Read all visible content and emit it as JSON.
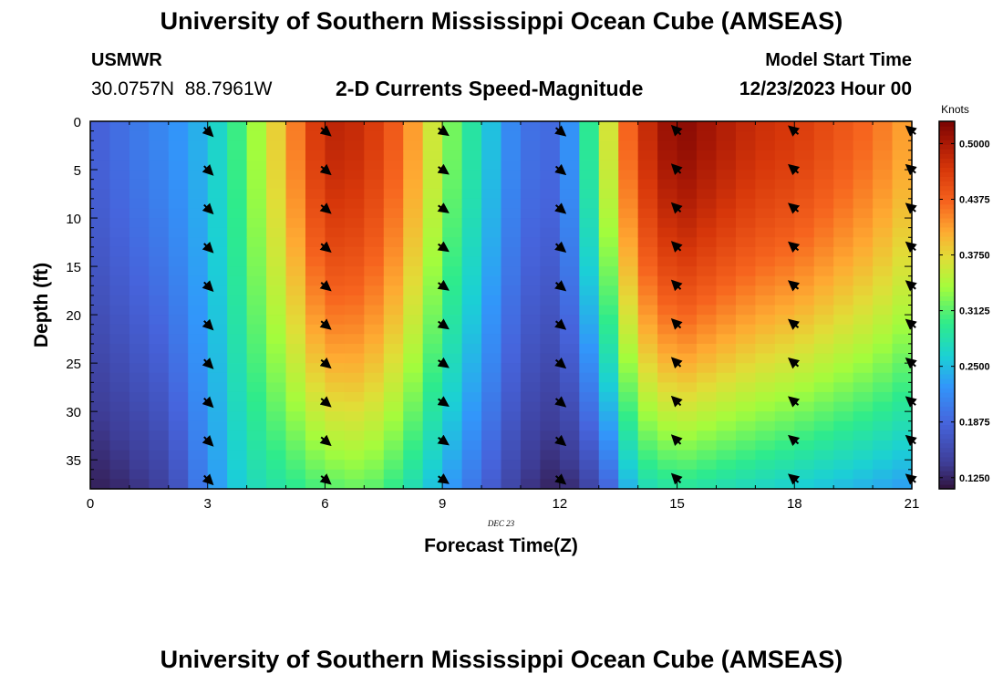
{
  "header": {
    "title": "University of Southern Mississippi Ocean Cube (AMSEAS)",
    "station": "USMWR",
    "coordinates": "30.0757N  88.7961W",
    "subtitle": "2-D Currents Speed-Magnitude",
    "model_start_label": "Model Start Time",
    "model_start_value": "12/23/2023 Hour 00"
  },
  "footer": {
    "title": "University of Southern Mississippi Ocean Cube (AMSEAS)"
  },
  "chart_data": {
    "type": "heatmap",
    "title": "2-D Currents Speed-Magnitude",
    "xlabel": "Forecast Time(Z)",
    "ylabel": "Depth (ft)",
    "date_label": "DEC 23",
    "xlim": [
      0,
      21
    ],
    "ylim": [
      0,
      38
    ],
    "x_ticks": [
      0,
      3,
      6,
      9,
      12,
      15,
      18,
      21
    ],
    "y_ticks": [
      0,
      5,
      10,
      15,
      20,
      25,
      30,
      35
    ],
    "colorbar": {
      "label": "Knots",
      "min": 0.1125,
      "max": 0.525,
      "ticks": [
        "0.1250",
        "0.1875",
        "0.2500",
        "0.3125",
        "0.3750",
        "0.4375",
        "0.5000"
      ]
    },
    "speed_columns": {
      "time_hours": [
        0,
        1,
        2,
        3,
        4,
        5,
        6,
        7,
        8,
        9,
        10,
        11,
        12,
        13,
        14,
        15,
        16,
        17,
        18,
        19,
        20,
        21
      ],
      "surface_knots": [
        0.18,
        0.2,
        0.22,
        0.25,
        0.32,
        0.4,
        0.49,
        0.48,
        0.43,
        0.34,
        0.27,
        0.2,
        0.19,
        0.33,
        0.47,
        0.52,
        0.5,
        0.48,
        0.47,
        0.45,
        0.43,
        0.4
      ],
      "bottom_knots": [
        0.12,
        0.13,
        0.15,
        0.22,
        0.27,
        0.29,
        0.31,
        0.32,
        0.29,
        0.24,
        0.19,
        0.14,
        0.12,
        0.16,
        0.27,
        0.29,
        0.28,
        0.27,
        0.26,
        0.25,
        0.24,
        0.23
      ]
    },
    "vectors": {
      "times": [
        3,
        6,
        9,
        12,
        15,
        18,
        21
      ],
      "depths": [
        1,
        5,
        9,
        13,
        17,
        21,
        25,
        29,
        33,
        37
      ],
      "direction_deg_from_north": [
        135,
        130,
        125,
        130,
        -45,
        -50,
        -50
      ]
    }
  }
}
